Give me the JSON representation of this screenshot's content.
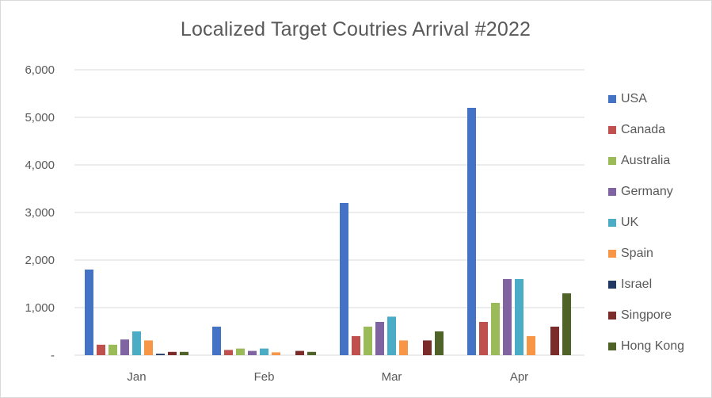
{
  "chart_data": {
    "type": "bar",
    "title": "Localized Target Coutries Arrival #2022",
    "xlabel": "",
    "ylabel": "",
    "categories": [
      "Jan",
      "Feb",
      "Mar",
      "Apr"
    ],
    "ylim": [
      0,
      6000
    ],
    "y_ticks": [
      0,
      1000,
      2000,
      3000,
      4000,
      5000,
      6000
    ],
    "y_tick_labels": [
      "-",
      "1,000",
      "2,000",
      "3,000",
      "4,000",
      "5,000",
      "6,000"
    ],
    "grid": true,
    "legend_position": "right",
    "series": [
      {
        "name": "USA",
        "color": "#4472c4",
        "values": [
          1800,
          600,
          3200,
          5200
        ]
      },
      {
        "name": "Canada",
        "color": "#c0504d",
        "values": [
          220,
          110,
          400,
          700
        ]
      },
      {
        "name": "Australia",
        "color": "#9bbb59",
        "values": [
          220,
          140,
          600,
          1100
        ]
      },
      {
        "name": "Germany",
        "color": "#8064a2",
        "values": [
          330,
          90,
          700,
          1600
        ]
      },
      {
        "name": "UK",
        "color": "#4bacc6",
        "values": [
          500,
          140,
          810,
          1600
        ]
      },
      {
        "name": "Spain",
        "color": "#f79646",
        "values": [
          310,
          60,
          310,
          400
        ]
      },
      {
        "name": "Israel",
        "color": "#1f3864",
        "values": [
          30,
          0,
          0,
          0
        ]
      },
      {
        "name": "Singpore",
        "color": "#7b2c2a",
        "values": [
          70,
          90,
          310,
          600
        ]
      },
      {
        "name": "Hong Kong",
        "color": "#4f6228",
        "values": [
          70,
          70,
          500,
          1300
        ]
      }
    ]
  }
}
